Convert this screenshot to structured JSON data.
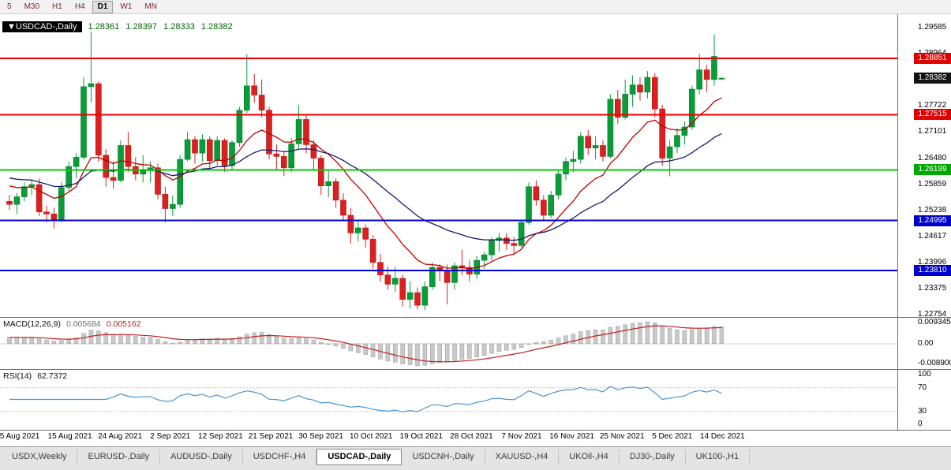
{
  "toolbar": {
    "timeframes": [
      {
        "label": "5",
        "active": false
      },
      {
        "label": "M30",
        "active": false
      },
      {
        "label": "H1",
        "active": false
      },
      {
        "label": "H4",
        "active": false
      },
      {
        "label": "D1",
        "active": true
      },
      {
        "label": "W1",
        "active": false
      },
      {
        "label": "MN",
        "active": false
      }
    ]
  },
  "title": {
    "symbol": "▼USDCAD-,Daily",
    "open": "1.28361",
    "high": "1.28397",
    "low": "1.28333",
    "close": "1.28382"
  },
  "price_axis": {
    "labels": [
      "1.29585",
      "1.28964",
      "1.28343",
      "1.27722",
      "1.27101",
      "1.26480",
      "1.25859",
      "1.25238",
      "1.24617",
      "1.23996",
      "1.23375",
      "1.22754"
    ],
    "badges": [
      {
        "text": "1.28851",
        "color": "#e00000"
      },
      {
        "text": "1.28382",
        "color": "#141414"
      },
      {
        "text": "1.27515",
        "color": "#e00000"
      },
      {
        "text": "1.26199",
        "color": "#00a800"
      },
      {
        "text": "1.24995",
        "color": "#0000cc"
      },
      {
        "text": "1.23810",
        "color": "#0000cc"
      }
    ]
  },
  "date_axis": {
    "labels": [
      "5 Aug 2021",
      "15 Aug 2021",
      "24 Aug 2021",
      "2 Sep 2021",
      "12 Sep 2021",
      "21 Sep 2021",
      "30 Sep 2021",
      "10 Oct 2021",
      "19 Oct 2021",
      "28 Oct 2021",
      "7 Nov 2021",
      "16 Nov 2021",
      "25 Nov 2021",
      "5 Dec 2021",
      "14 Dec 2021"
    ]
  },
  "indicators": {
    "macd": {
      "label": "MACD(12,26,9)",
      "value_main": "0.005684",
      "value_signal": "0.005162",
      "axis_labels": [
        "0.009345",
        "0.00",
        "-0.008900"
      ]
    },
    "rsi": {
      "label": "RSI(14)",
      "value": "62.7372",
      "axis_labels": [
        "100",
        "70",
        "30",
        "0"
      ]
    }
  },
  "tabs": {
    "items": [
      {
        "label": "USDX,Weekly",
        "active": false
      },
      {
        "label": "EURUSD-,Daily",
        "active": false
      },
      {
        "label": "AUDUSD-,Daily",
        "active": false
      },
      {
        "label": "USDCHF-,H4",
        "active": false
      },
      {
        "label": "USDCAD-,Daily",
        "active": true
      },
      {
        "label": "USDCNH-,Daily",
        "active": false
      },
      {
        "label": "XAUUSD-,H4",
        "active": false
      },
      {
        "label": "UKOil-,H4",
        "active": false
      },
      {
        "label": "DJ30-,Daily",
        "active": false
      },
      {
        "label": "UK100-,H1",
        "active": false
      }
    ]
  },
  "colors": {
    "up": "#089d38",
    "up_stroke": "#067a2b",
    "down": "#dc2020",
    "down_stroke": "#b01515",
    "ma_fast": "#c00000",
    "ma_slow": "#191970",
    "macd_bar": "#c9c9c9",
    "macd_bar_stroke": "#9a9a9a",
    "macd_signal": "#c22020",
    "rsi": "#4a95d5"
  },
  "chart_data": {
    "type": "candlestick",
    "symbol": "USDCAD-",
    "timeframe": "Daily",
    "price_top": 1.29885,
    "price_bottom": 1.227,
    "levels": [
      {
        "name": "resistance-line-1",
        "price": 1.28851,
        "color": "#ee0000",
        "width": 2
      },
      {
        "name": "resistance-line-2",
        "price": 1.27515,
        "color": "#ee0000",
        "width": 2
      },
      {
        "name": "mid-line-green",
        "price": 1.26199,
        "color": "#00cc00",
        "width": 2
      },
      {
        "name": "support-line-1",
        "price": 1.24995,
        "color": "#0000dd",
        "width": 2
      },
      {
        "name": "support-line-2",
        "price": 1.2381,
        "color": "#0000dd",
        "width": 2
      }
    ],
    "ma_fast": {
      "period": 12,
      "seed": 1.259
    },
    "ma_slow": {
      "period": 30,
      "seed": 1.2605
    },
    "macd_seeds": [
      1.2555,
      1.2525
    ],
    "candles": [
      [
        1.2545,
        1.256,
        1.2525,
        1.2538
      ],
      [
        1.2538,
        1.2565,
        1.2515,
        1.2556
      ],
      [
        1.2556,
        1.259,
        1.2545,
        1.258
      ],
      [
        1.258,
        1.2595,
        1.256,
        1.2585
      ],
      [
        1.2585,
        1.26,
        1.251,
        1.252
      ],
      [
        1.252,
        1.2535,
        1.2495,
        1.2515
      ],
      [
        1.2515,
        1.253,
        1.248,
        1.2502
      ],
      [
        1.2502,
        1.259,
        1.2495,
        1.2578
      ],
      [
        1.2578,
        1.264,
        1.257,
        1.2628
      ],
      [
        1.2628,
        1.266,
        1.26,
        1.265
      ],
      [
        1.265,
        1.284,
        1.2645,
        1.2818
      ],
      [
        1.2818,
        1.2949,
        1.278,
        1.2825
      ],
      [
        1.2825,
        1.283,
        1.264,
        1.2655
      ],
      [
        1.2655,
        1.267,
        1.258,
        1.2602
      ],
      [
        1.2602,
        1.264,
        1.2575,
        1.2595
      ],
      [
        1.2595,
        1.269,
        1.259,
        1.2678
      ],
      [
        1.2678,
        1.271,
        1.2615,
        1.2628
      ],
      [
        1.2628,
        1.265,
        1.2595,
        1.261
      ],
      [
        1.261,
        1.2655,
        1.259,
        1.2618
      ],
      [
        1.2618,
        1.264,
        1.259,
        1.2625
      ],
      [
        1.2625,
        1.2635,
        1.255,
        1.2562
      ],
      [
        1.2562,
        1.258,
        1.2495,
        1.2528
      ],
      [
        1.2528,
        1.256,
        1.251,
        1.2538
      ],
      [
        1.2538,
        1.2655,
        1.253,
        1.2645
      ],
      [
        1.2645,
        1.271,
        1.264,
        1.2692
      ],
      [
        1.2692,
        1.27,
        1.2635,
        1.266
      ],
      [
        1.266,
        1.2705,
        1.264,
        1.2692
      ],
      [
        1.2692,
        1.27,
        1.2625,
        1.2642
      ],
      [
        1.2642,
        1.27,
        1.263,
        1.269
      ],
      [
        1.269,
        1.2695,
        1.2615,
        1.263
      ],
      [
        1.263,
        1.269,
        1.262,
        1.2685
      ],
      [
        1.2685,
        1.277,
        1.2675,
        1.2762
      ],
      [
        1.2762,
        1.2895,
        1.2755,
        1.282
      ],
      [
        1.282,
        1.2848,
        1.278,
        1.2798
      ],
      [
        1.2798,
        1.2835,
        1.2745,
        1.2762
      ],
      [
        1.2762,
        1.277,
        1.2645,
        1.2658
      ],
      [
        1.2658,
        1.268,
        1.262,
        1.2652
      ],
      [
        1.2652,
        1.2665,
        1.2605,
        1.2625
      ],
      [
        1.2625,
        1.2695,
        1.2615,
        1.2682
      ],
      [
        1.2682,
        1.2775,
        1.267,
        1.274
      ],
      [
        1.274,
        1.275,
        1.266,
        1.268
      ],
      [
        1.268,
        1.269,
        1.262,
        1.2648
      ],
      [
        1.2648,
        1.2655,
        1.256,
        1.2582
      ],
      [
        1.2582,
        1.262,
        1.2555,
        1.2592
      ],
      [
        1.2592,
        1.26,
        1.253,
        1.2548
      ],
      [
        1.2548,
        1.2565,
        1.25,
        1.2512
      ],
      [
        1.2512,
        1.253,
        1.2445,
        1.247
      ],
      [
        1.247,
        1.25,
        1.245,
        1.2482
      ],
      [
        1.2482,
        1.249,
        1.2435,
        1.2455
      ],
      [
        1.2455,
        1.2465,
        1.2385,
        1.24
      ],
      [
        1.24,
        1.242,
        1.2355,
        1.237
      ],
      [
        1.237,
        1.239,
        1.2335,
        1.2348
      ],
      [
        1.2348,
        1.239,
        1.233,
        1.2362
      ],
      [
        1.2362,
        1.237,
        1.2295,
        1.2312
      ],
      [
        1.2312,
        1.2355,
        1.229,
        1.2328
      ],
      [
        1.2328,
        1.234,
        1.2288,
        1.2298
      ],
      [
        1.2298,
        1.2355,
        1.2287,
        1.2342
      ],
      [
        1.2342,
        1.24,
        1.2335,
        1.2388
      ],
      [
        1.2388,
        1.2395,
        1.2355,
        1.238
      ],
      [
        1.238,
        1.2395,
        1.23,
        1.2352
      ],
      [
        1.2352,
        1.24,
        1.2335,
        1.2392
      ],
      [
        1.2392,
        1.243,
        1.237,
        1.2388
      ],
      [
        1.2388,
        1.2405,
        1.2355,
        1.2372
      ],
      [
        1.2372,
        1.2415,
        1.236,
        1.2405
      ],
      [
        1.2405,
        1.2425,
        1.2385,
        1.2418
      ],
      [
        1.2418,
        1.246,
        1.2405,
        1.2452
      ],
      [
        1.2452,
        1.247,
        1.2425,
        1.2458
      ],
      [
        1.2458,
        1.247,
        1.243,
        1.2445
      ],
      [
        1.2445,
        1.246,
        1.242,
        1.244
      ],
      [
        1.244,
        1.25,
        1.2435,
        1.2495
      ],
      [
        1.2495,
        1.259,
        1.249,
        1.258
      ],
      [
        1.258,
        1.2595,
        1.2535,
        1.2548
      ],
      [
        1.2548,
        1.256,
        1.25,
        1.2512
      ],
      [
        1.2512,
        1.257,
        1.2505,
        1.256
      ],
      [
        1.256,
        1.262,
        1.255,
        1.261
      ],
      [
        1.261,
        1.265,
        1.2595,
        1.264
      ],
      [
        1.264,
        1.2665,
        1.2615,
        1.2645
      ],
      [
        1.2645,
        1.271,
        1.2635,
        1.27
      ],
      [
        1.27,
        1.2715,
        1.2655,
        1.2672
      ],
      [
        1.2672,
        1.27,
        1.2645,
        1.2678
      ],
      [
        1.2678,
        1.269,
        1.264,
        1.2652
      ],
      [
        1.2652,
        1.28,
        1.2648,
        1.2788
      ],
      [
        1.2788,
        1.281,
        1.273,
        1.2745
      ],
      [
        1.2745,
        1.2835,
        1.274,
        1.28
      ],
      [
        1.28,
        1.2845,
        1.277,
        1.2822
      ],
      [
        1.2822,
        1.284,
        1.2785,
        1.2805
      ],
      [
        1.2805,
        1.2855,
        1.279,
        1.284
      ],
      [
        1.284,
        1.285,
        1.2745,
        1.2765
      ],
      [
        1.2765,
        1.2775,
        1.263,
        1.2648
      ],
      [
        1.2648,
        1.269,
        1.2605,
        1.2675
      ],
      [
        1.2675,
        1.272,
        1.266,
        1.2702
      ],
      [
        1.2702,
        1.2735,
        1.268,
        1.2722
      ],
      [
        1.2722,
        1.282,
        1.2715,
        1.2812
      ],
      [
        1.2812,
        1.2895,
        1.28,
        1.2858
      ],
      [
        1.2858,
        1.287,
        1.2805,
        1.2835
      ],
      [
        1.2835,
        1.2942,
        1.282,
        1.289
      ],
      [
        1.28361,
        1.28397,
        1.28333,
        1.28382
      ]
    ]
  }
}
